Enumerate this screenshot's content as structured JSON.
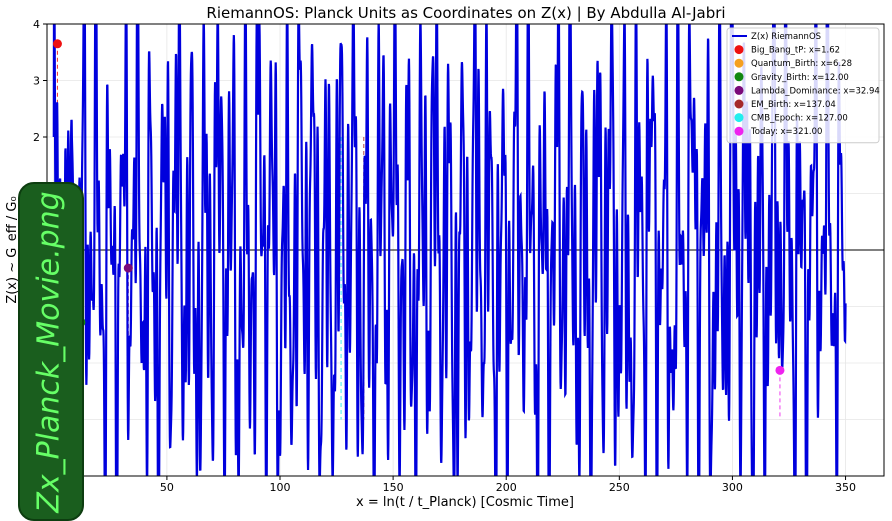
{
  "chart_data": {
    "type": "line",
    "title": "RiemannOS: Planck Units as Coordinates on Z(x) | By Abdulla Al-Jabri",
    "xlabel": "x = ln(t / t_Planck) [Cosmic Time]",
    "ylabel": "Z(x) ~ G_eff / G₀",
    "xlim": [
      -3,
      367
    ],
    "ylim": [
      -4,
      4
    ],
    "x_ticks": [
      0,
      50,
      100,
      150,
      200,
      250,
      300,
      350
    ],
    "y_ticks": [
      2,
      3,
      4
    ],
    "grid": true,
    "legend_position": "top-right",
    "series": [
      {
        "name": "Z(x) RiemannOS",
        "color": "#0000dd",
        "x_range": [
          0,
          350
        ]
      }
    ],
    "markers": [
      {
        "name": "Big_Bang_tP",
        "label": "Big_Bang_tP: x=1.62",
        "x": 1.62,
        "y": 3.65,
        "color": "#ee1111"
      },
      {
        "name": "Quantum_Birth",
        "label": "Quantum_Birth: x=6.28",
        "x": 6.28,
        "y": 0.42,
        "color": "#f5a020"
      },
      {
        "name": "Gravity_Birth",
        "label": "Gravity_Birth: x=12.00",
        "x": 12.0,
        "y": -1.28,
        "color": "#118811"
      },
      {
        "name": "Lambda_Dominance",
        "label": "Lambda_Dominance: x=32.94",
        "x": 32.94,
        "y": -0.32,
        "color": "#7a0a7a"
      },
      {
        "name": "EM_Birth",
        "label": "EM_Birth: x=137.04",
        "x": 137.04,
        "y": null,
        "color": "#a52a2a"
      },
      {
        "name": "CMB_Epoch",
        "label": "CMB_Epoch: x=127.00",
        "x": 127.0,
        "y": null,
        "color": "#22eeee"
      },
      {
        "name": "Today",
        "label": "Today: x=321.00",
        "x": 321.0,
        "y": -2.13,
        "color": "#ee22ee"
      }
    ]
  },
  "watermark": {
    "text": "Zx_Planck_Movie.png",
    "box_color": "#1a5e1e",
    "text_color": "#66ff66"
  }
}
